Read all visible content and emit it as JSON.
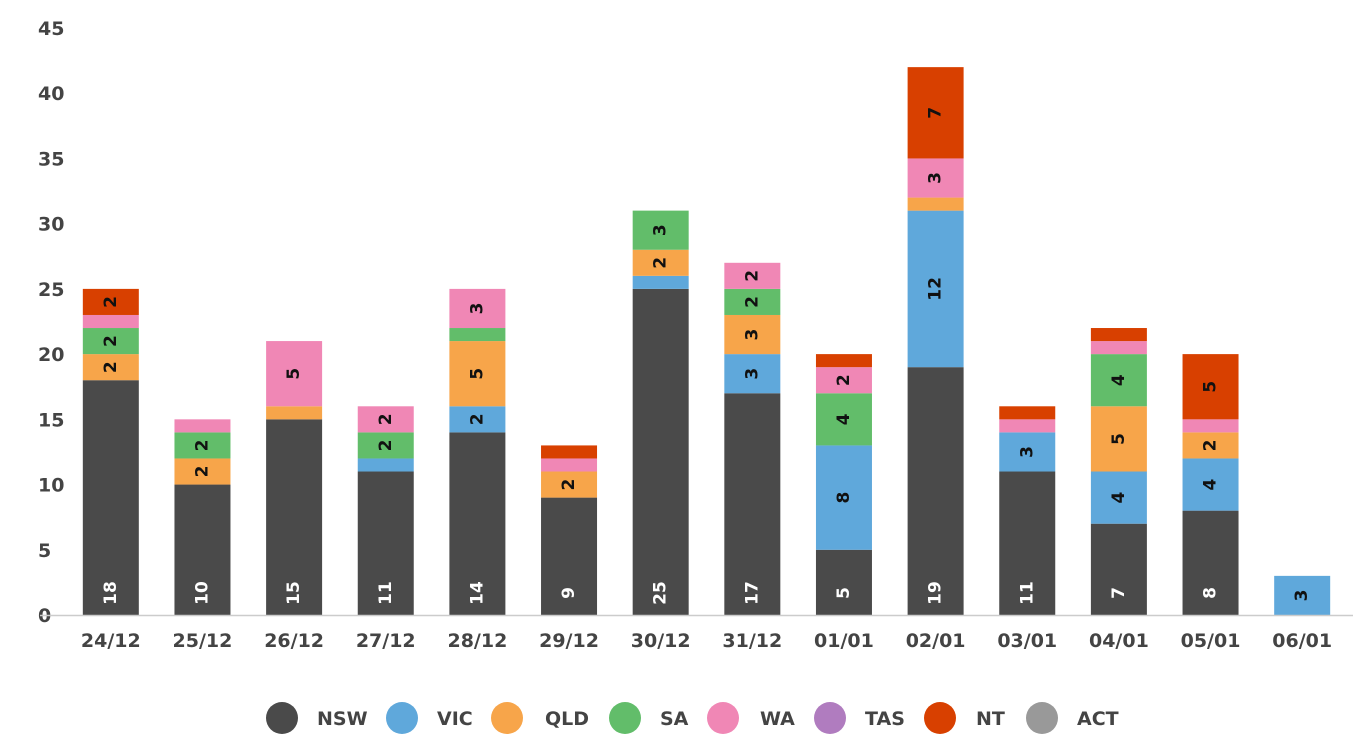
{
  "chart_data": {
    "type": "bar",
    "stacked": true,
    "ylim": [
      0,
      45
    ],
    "yticks": [
      0,
      5,
      10,
      15,
      20,
      25,
      30,
      35,
      40,
      45
    ],
    "grid": false,
    "legend_position": "bottom",
    "categories": [
      "24/12",
      "25/12",
      "26/12",
      "27/12",
      "28/12",
      "29/12",
      "30/12",
      "31/12",
      "01/01",
      "02/01",
      "03/01",
      "04/01",
      "05/01",
      "06/01"
    ],
    "series": [
      {
        "name": "NSW",
        "color": "#4a4a4a",
        "values": [
          18,
          10,
          15,
          11,
          14,
          9,
          25,
          17,
          5,
          19,
          11,
          7,
          8,
          0
        ]
      },
      {
        "name": "VIC",
        "color": "#5fa8db",
        "values": [
          0,
          0,
          0,
          1,
          2,
          0,
          1,
          3,
          8,
          12,
          3,
          4,
          4,
          3
        ]
      },
      {
        "name": "QLD",
        "color": "#f7a54a",
        "values": [
          2,
          2,
          1,
          0,
          5,
          2,
          2,
          3,
          0,
          1,
          0,
          5,
          2,
          0
        ]
      },
      {
        "name": "SA",
        "color": "#62bd6a",
        "values": [
          2,
          2,
          0,
          2,
          1,
          0,
          3,
          2,
          4,
          0,
          0,
          4,
          0,
          0
        ]
      },
      {
        "name": "WA",
        "color": "#f087b5",
        "values": [
          1,
          1,
          5,
          2,
          3,
          1,
          0,
          2,
          2,
          3,
          1,
          1,
          1,
          0
        ]
      },
      {
        "name": "TAS",
        "color": "#b07cbf",
        "values": [
          0,
          0,
          0,
          0,
          0,
          0,
          0,
          0,
          0,
          0,
          0,
          0,
          0,
          0
        ]
      },
      {
        "name": "NT",
        "color": "#d84000",
        "values": [
          2,
          0,
          0,
          0,
          0,
          1,
          0,
          0,
          1,
          7,
          1,
          1,
          5,
          0
        ]
      },
      {
        "name": "ACT",
        "color": "#999999",
        "values": [
          0,
          0,
          0,
          0,
          0,
          0,
          0,
          0,
          0,
          0,
          0,
          0,
          0,
          0
        ]
      }
    ]
  }
}
